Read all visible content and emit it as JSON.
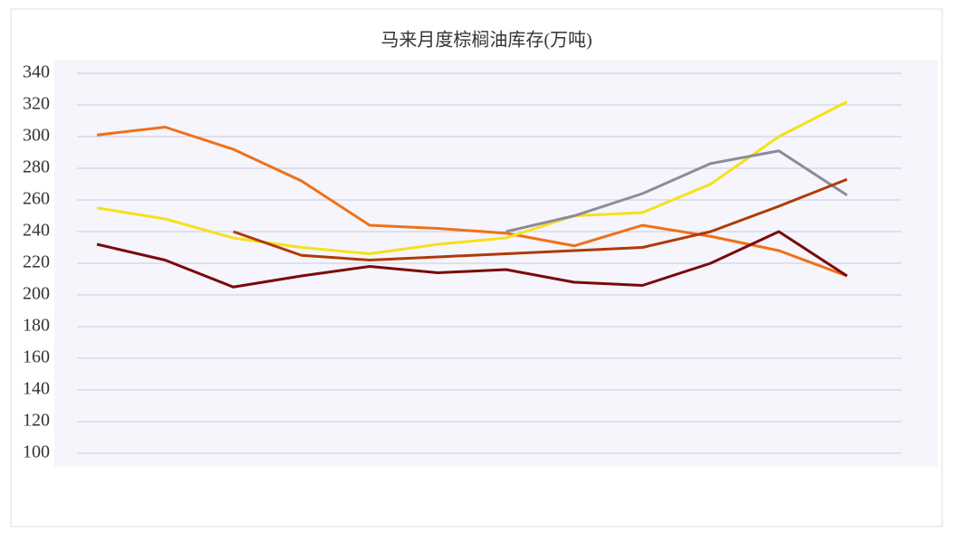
{
  "chart_data": {
    "type": "line",
    "title": "马来月度棕榈油库存(万吨)",
    "categories": [
      null,
      null,
      null,
      null,
      null,
      null,
      null,
      null,
      null,
      null,
      null,
      null
    ],
    "series": [
      {
        "name": null,
        "color": "#f07018",
        "values": [
          301,
          306,
          292,
          272,
          244,
          242,
          239,
          231,
          244,
          237,
          228,
          212
        ]
      },
      {
        "name": null,
        "color": "#f5e11a",
        "values": [
          255,
          248,
          236,
          230,
          226,
          232,
          236,
          250,
          252,
          270,
          300,
          322
        ]
      },
      {
        "name": null,
        "color": "#8c8c99",
        "values": [
          null,
          null,
          null,
          null,
          null,
          null,
          240,
          250,
          264,
          283,
          291,
          263
        ]
      },
      {
        "name": null,
        "color": "#7a0a0a",
        "values": [
          232,
          222,
          205,
          212,
          218,
          214,
          216,
          208,
          206,
          220,
          240,
          212
        ]
      },
      {
        "name": null,
        "color": "#b03a08",
        "values": [
          null,
          null,
          240,
          225,
          222,
          224,
          226,
          228,
          230,
          240,
          256,
          273
        ]
      }
    ],
    "ylim": [
      100,
      340
    ],
    "yticks": [
      100,
      120,
      140,
      160,
      180,
      200,
      220,
      240,
      260,
      280,
      300,
      320,
      340
    ],
    "grid": true
  }
}
